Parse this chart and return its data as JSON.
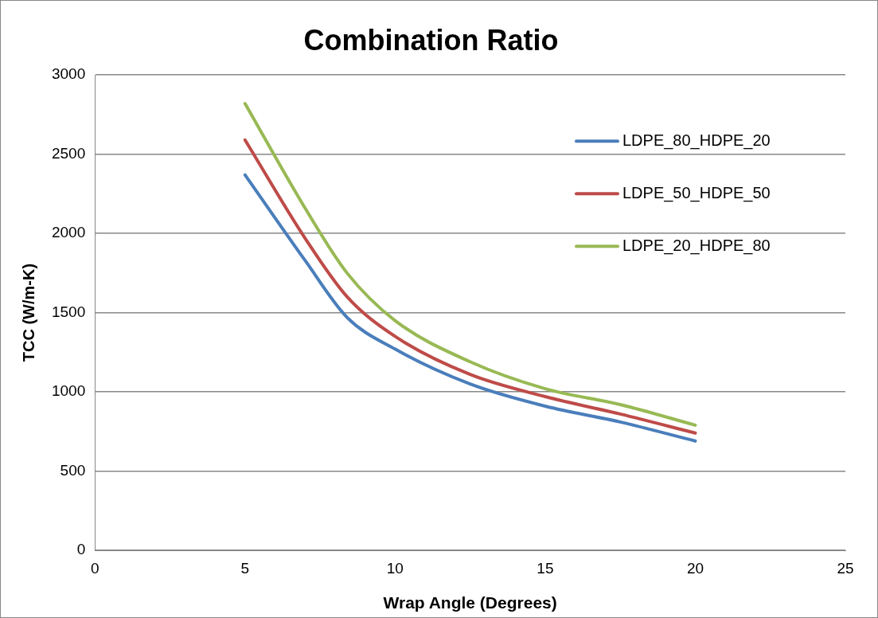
{
  "chart_data": {
    "type": "line",
    "title": "Combination Ratio",
    "xlabel": "Wrap Angle (Degrees)",
    "ylabel": "TCC (W/m-K)",
    "x": [
      5,
      7,
      8.4,
      10,
      12.5,
      15,
      17.5,
      20
    ],
    "series": [
      {
        "name": "LDPE_80_HDPE_20",
        "color": "#4a7ebb",
        "values": [
          2370,
          1830,
          1470,
          1270,
          1050,
          910,
          810,
          690
        ]
      },
      {
        "name": "LDPE_50_HDPE_50",
        "color": "#be4b48",
        "values": [
          2590,
          1970,
          1600,
          1350,
          1110,
          970,
          860,
          740
        ]
      },
      {
        "name": "LDPE_20_HDPE_80",
        "color": "#98b954",
        "values": [
          2820,
          2160,
          1750,
          1450,
          1190,
          1020,
          920,
          790
        ]
      }
    ],
    "xlim": [
      0,
      25
    ],
    "xticks": [
      0,
      5,
      10,
      15,
      20,
      25
    ],
    "ylim": [
      0,
      3000
    ],
    "yticks": [
      0,
      500,
      1000,
      1500,
      2000,
      2500,
      3000
    ],
    "grid": "y",
    "legend": "top right",
    "marker": "none",
    "line_style": "solid"
  }
}
